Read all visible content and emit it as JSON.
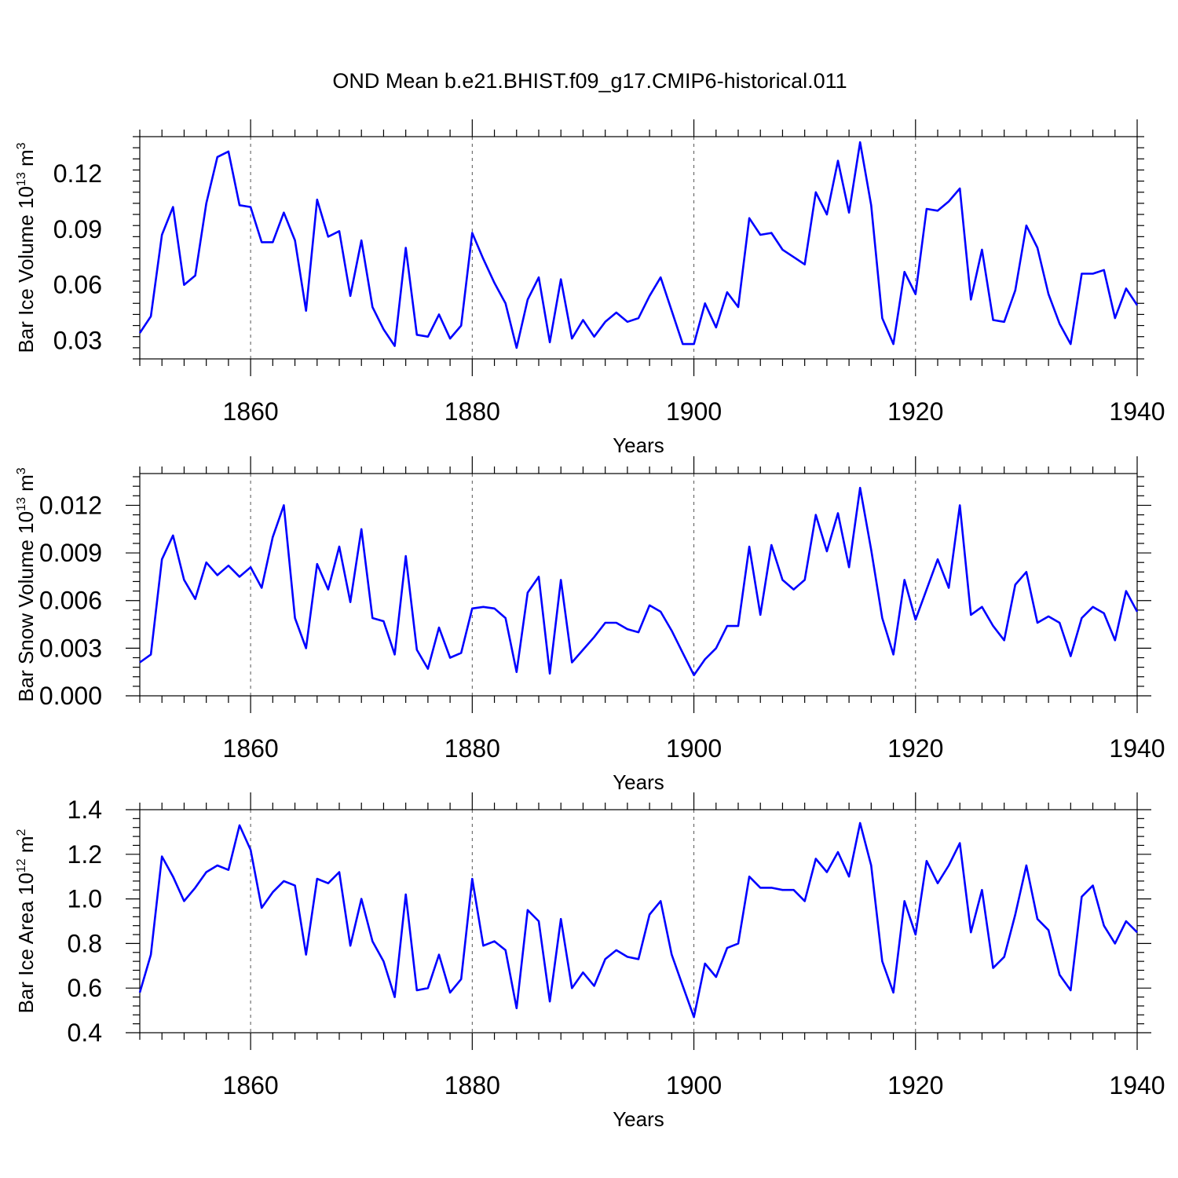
{
  "title": "OND Mean b.e21.BHIST.f09_g17.CMIP6-historical.011",
  "line_color": "#0000ff",
  "chart_data": [
    {
      "type": "line",
      "ylabel": "Bar Ice Volume 10",
      "ylabel_exp": "13",
      "ylabel_unit": " m",
      "ylabel_unit_exp": "3",
      "xlabel": "Years",
      "xlim": [
        1850,
        1940
      ],
      "ylim": [
        0.02,
        0.14
      ],
      "xticks": [
        1860,
        1880,
        1900,
        1920,
        1940
      ],
      "xtick_labels": [
        "1860",
        "1880",
        "1900",
        "1920",
        "1940"
      ],
      "yticks": [
        0.03,
        0.06,
        0.09,
        0.12
      ],
      "ytick_labels": [
        "0.03",
        "0.06",
        "0.09",
        "0.12"
      ],
      "x_start": 1850,
      "values": [
        0.034,
        0.043,
        0.087,
        0.102,
        0.06,
        0.065,
        0.104,
        0.129,
        0.132,
        0.103,
        0.102,
        0.083,
        0.083,
        0.099,
        0.084,
        0.046,
        0.106,
        0.086,
        0.089,
        0.054,
        0.084,
        0.048,
        0.036,
        0.027,
        0.08,
        0.033,
        0.032,
        0.044,
        0.031,
        0.038,
        0.088,
        0.074,
        0.061,
        0.05,
        0.026,
        0.052,
        0.064,
        0.029,
        0.063,
        0.031,
        0.041,
        0.032,
        0.04,
        0.045,
        0.04,
        0.042,
        0.054,
        0.064,
        0.046,
        0.028,
        0.028,
        0.05,
        0.037,
        0.056,
        0.048,
        0.096,
        0.087,
        0.088,
        0.079,
        0.075,
        0.071,
        0.11,
        0.098,
        0.127,
        0.099,
        0.137,
        0.103,
        0.042,
        0.028,
        0.067,
        0.055,
        0.101,
        0.1,
        0.105,
        0.112,
        0.052,
        0.079,
        0.041,
        0.04,
        0.057,
        0.092,
        0.08,
        0.055,
        0.039,
        0.028,
        0.066,
        0.066,
        0.068,
        0.042,
        0.058,
        0.049
      ]
    },
    {
      "type": "line",
      "ylabel": "Bar Snow Volume 10",
      "ylabel_exp": "13",
      "ylabel_unit": " m",
      "ylabel_unit_exp": "3",
      "xlabel": "Years",
      "xlim": [
        1850,
        1940
      ],
      "ylim": [
        0.0,
        0.014
      ],
      "xticks": [
        1860,
        1880,
        1900,
        1920,
        1940
      ],
      "xtick_labels": [
        "1860",
        "1880",
        "1900",
        "1920",
        "1940"
      ],
      "yticks": [
        0.0,
        0.003,
        0.006,
        0.009,
        0.012
      ],
      "ytick_labels": [
        "0.000",
        "0.003",
        "0.006",
        "0.009",
        "0.012"
      ],
      "x_start": 1850,
      "values": [
        0.0021,
        0.0026,
        0.0086,
        0.0101,
        0.0073,
        0.0061,
        0.0084,
        0.0076,
        0.0082,
        0.0075,
        0.0081,
        0.0068,
        0.01,
        0.012,
        0.0049,
        0.003,
        0.0083,
        0.0067,
        0.0094,
        0.0059,
        0.0105,
        0.0049,
        0.0047,
        0.0026,
        0.0088,
        0.0029,
        0.0017,
        0.0043,
        0.0024,
        0.0027,
        0.0055,
        0.0056,
        0.0055,
        0.0049,
        0.0015,
        0.0065,
        0.0075,
        0.0014,
        0.0073,
        0.0021,
        0.0029,
        0.0037,
        0.0046,
        0.0046,
        0.0042,
        0.004,
        0.0057,
        0.0053,
        0.0041,
        0.0027,
        0.0013,
        0.0023,
        0.003,
        0.0044,
        0.0044,
        0.0094,
        0.0051,
        0.0095,
        0.0073,
        0.0067,
        0.0073,
        0.0114,
        0.0091,
        0.0115,
        0.0081,
        0.0131,
        0.0092,
        0.0049,
        0.0026,
        0.0073,
        0.0048,
        0.0067,
        0.0086,
        0.0068,
        0.012,
        0.0051,
        0.0056,
        0.0044,
        0.0035,
        0.007,
        0.0078,
        0.0046,
        0.005,
        0.0046,
        0.0025,
        0.0049,
        0.0056,
        0.0052,
        0.0035,
        0.0066,
        0.0053
      ]
    },
    {
      "type": "line",
      "ylabel": "Bar Ice Area 10",
      "ylabel_exp": "12",
      "ylabel_unit": " m",
      "ylabel_unit_exp": "2",
      "xlabel": "Years",
      "xlim": [
        1850,
        1940
      ],
      "ylim": [
        0.4,
        1.4
      ],
      "xticks": [
        1860,
        1880,
        1900,
        1920,
        1940
      ],
      "xtick_labels": [
        "1860",
        "1880",
        "1900",
        "1920",
        "1940"
      ],
      "yticks": [
        0.4,
        0.6,
        0.8,
        1.0,
        1.2,
        1.4
      ],
      "ytick_labels": [
        "0.4",
        "0.6",
        "0.8",
        "1.0",
        "1.2",
        "1.4"
      ],
      "x_start": 1850,
      "values": [
        0.58,
        0.75,
        1.19,
        1.1,
        0.99,
        1.05,
        1.12,
        1.15,
        1.13,
        1.33,
        1.22,
        0.96,
        1.03,
        1.08,
        1.06,
        0.75,
        1.09,
        1.07,
        1.12,
        0.79,
        1.0,
        0.81,
        0.72,
        0.56,
        1.02,
        0.59,
        0.6,
        0.75,
        0.58,
        0.64,
        1.09,
        0.79,
        0.81,
        0.77,
        0.51,
        0.95,
        0.9,
        0.54,
        0.91,
        0.6,
        0.67,
        0.61,
        0.73,
        0.77,
        0.74,
        0.73,
        0.93,
        0.99,
        0.75,
        0.61,
        0.47,
        0.71,
        0.65,
        0.78,
        0.8,
        1.1,
        1.05,
        1.05,
        1.04,
        1.04,
        0.99,
        1.18,
        1.12,
        1.21,
        1.1,
        1.34,
        1.15,
        0.72,
        0.58,
        0.99,
        0.84,
        1.17,
        1.07,
        1.15,
        1.25,
        0.85,
        1.04,
        0.69,
        0.74,
        0.93,
        1.15,
        0.91,
        0.86,
        0.66,
        0.59,
        1.01,
        1.06,
        0.88,
        0.8,
        0.9,
        0.85
      ]
    }
  ]
}
